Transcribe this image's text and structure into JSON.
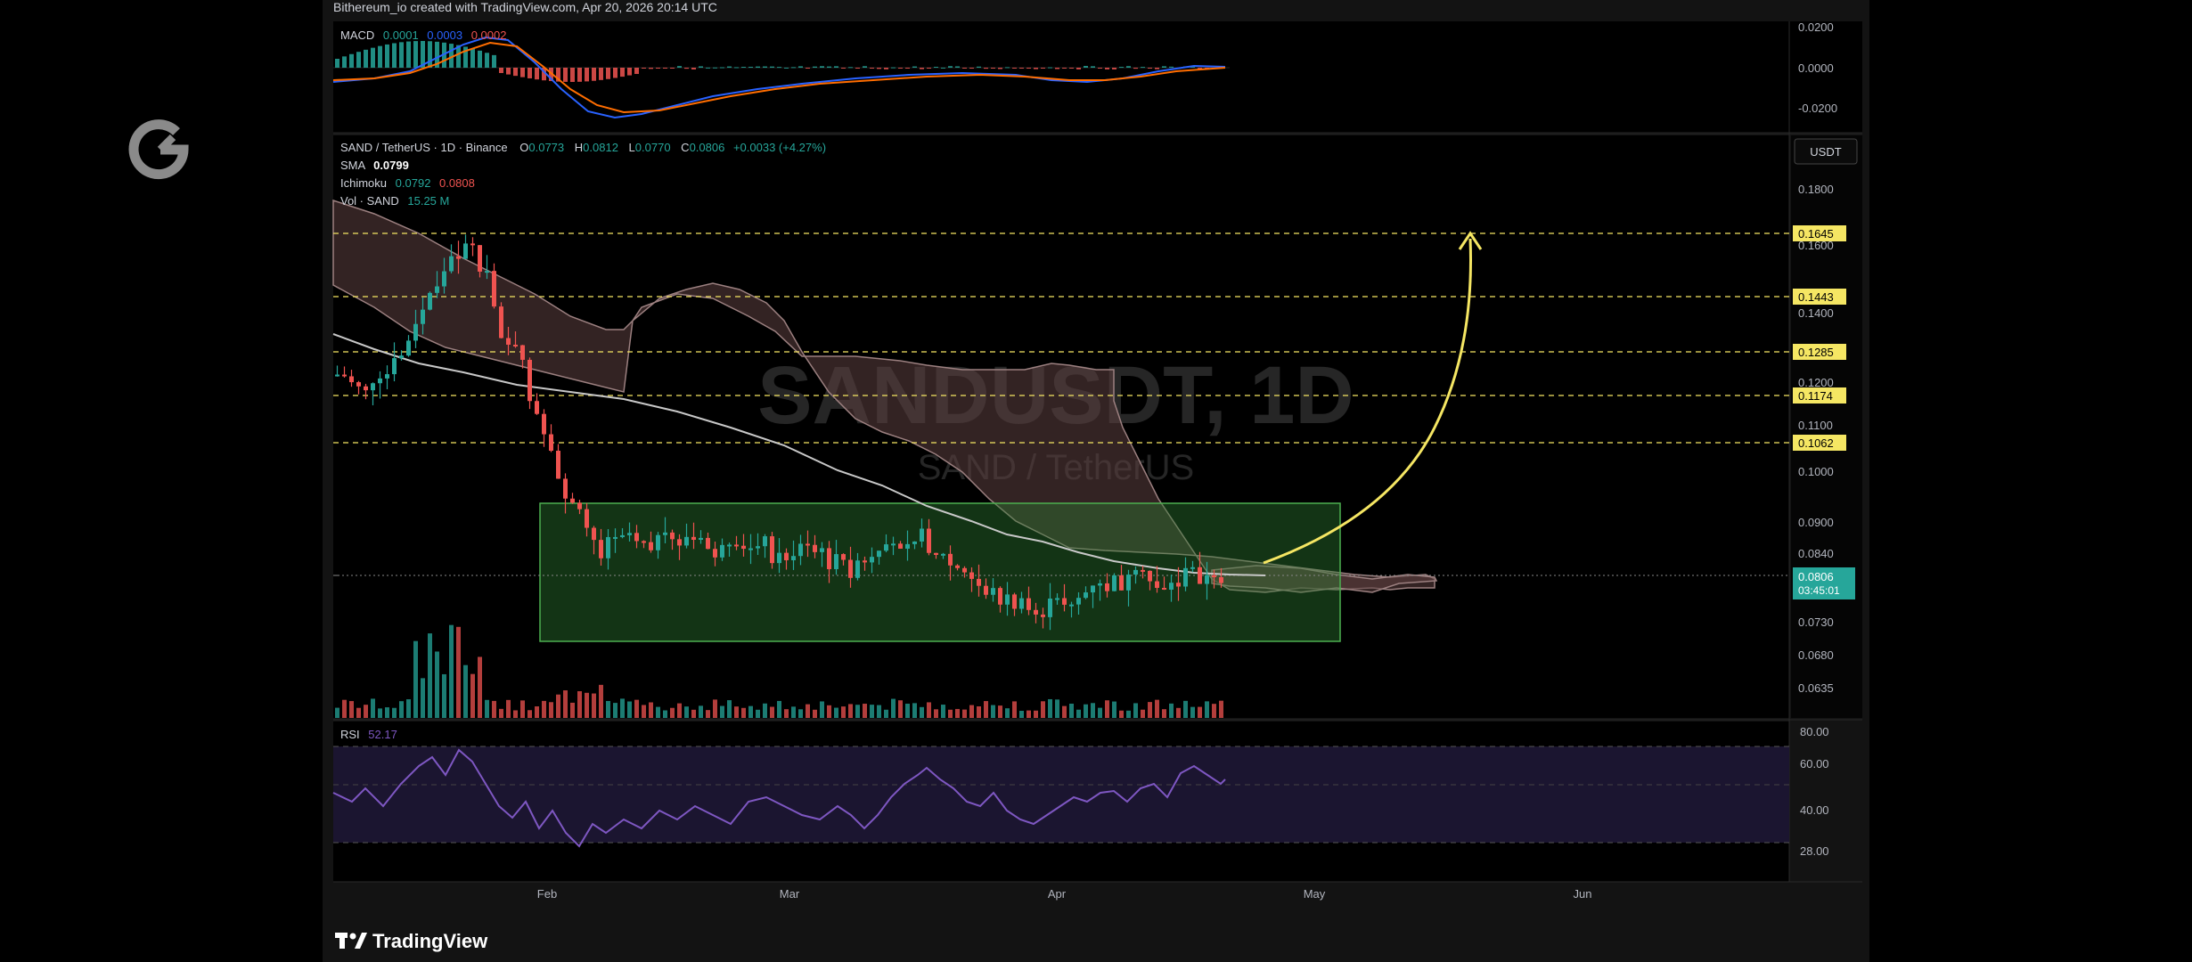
{
  "header": {
    "attribution": "Bithereum_io created with TradingView.com, Apr 20, 2026 20:14 UTC"
  },
  "footer": {
    "brand": "TradingView"
  },
  "colors": {
    "up": "#26a69a",
    "down": "#ef5350",
    "macd": "#2962ff",
    "signal": "#ff6d00",
    "rsi": "#7e57c2",
    "sma": "#b2b5be",
    "target": "#f5e663",
    "box": "#2e7d32"
  },
  "macd": {
    "label": "MACD",
    "v1": "0.0001",
    "v2": "0.0003",
    "v3": "0.0002",
    "ticks": [
      "0.0200",
      "0.0000",
      "-0.0200"
    ]
  },
  "legend": {
    "symbol": "SAND / TetherUS · 1D · Binance",
    "o_label": "O",
    "o": "0.0773",
    "h_label": "H",
    "h": "0.0812",
    "l_label": "L",
    "l": "0.0770",
    "c_label": "C",
    "c": "0.0806",
    "chg": "+0.0033 (+4.27%)",
    "sma_label": "SMA",
    "sma": "0.0799",
    "ichimoku_label": "Ichimoku",
    "ichimoku_1": "0.0792",
    "ichimoku_2": "0.0808",
    "vol_label": "Vol · SAND",
    "vol": "15.25 M"
  },
  "currency_button": "USDT",
  "watermark": {
    "ticker": "SANDUSDT, 1D",
    "name": "SAND / TetherUS"
  },
  "price_axis": {
    "ticks": [
      "0.1800",
      "0.1600",
      "0.1400",
      "0.1200",
      "0.1100",
      "0.1000",
      "0.0900",
      "0.0840",
      "0.0730",
      "0.0680",
      "0.0635"
    ],
    "levels": [
      "0.1645",
      "0.1443",
      "0.1285",
      "0.1174",
      "0.1062"
    ],
    "current": "0.0806",
    "countdown": "03:45:01"
  },
  "rsi": {
    "label": "RSI",
    "value": "52.17",
    "ticks": [
      "80.00",
      "60.00",
      "40.00",
      "28.00"
    ]
  },
  "time_axis": [
    "Feb",
    "Mar",
    "Apr",
    "May",
    "Jun"
  ],
  "chart_data": {
    "type": "candlestick",
    "symbol": "SAND/USDT",
    "interval": "1D",
    "current_price": 0.0806,
    "resistance_levels": [
      0.1645,
      0.1443,
      0.1285,
      0.1174,
      0.1062
    ],
    "consolidation_range": [
      0.0705,
      0.0935
    ],
    "projected_target": 0.1645,
    "rsi_value": 52.17
  }
}
